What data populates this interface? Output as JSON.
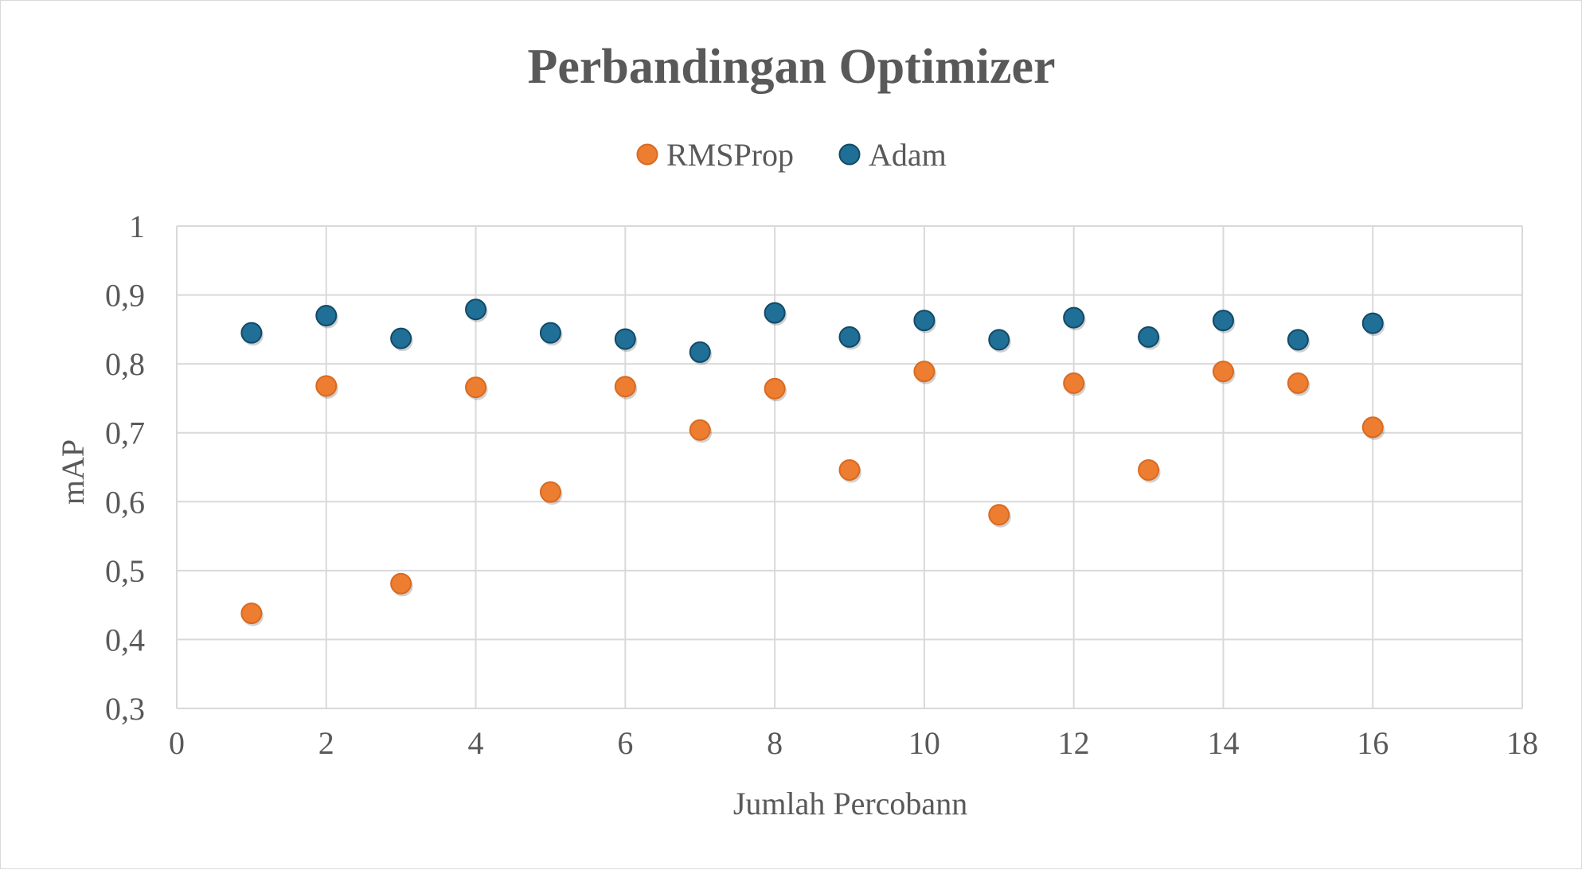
{
  "chart_data": {
    "type": "scatter",
    "title": "Perbandingan Optimizer",
    "xlabel": "Jumlah Percobann",
    "ylabel": "mAP",
    "xlim": [
      0,
      18
    ],
    "ylim": [
      0.3,
      1
    ],
    "x_ticks": [
      "0",
      "2",
      "4",
      "6",
      "8",
      "10",
      "12",
      "14",
      "16",
      "18"
    ],
    "y_ticks": [
      "0,3",
      "0,4",
      "0,5",
      "0,6",
      "0,7",
      "0,8",
      "0,9",
      "1"
    ],
    "x_tick_values": [
      0,
      2,
      4,
      6,
      8,
      10,
      12,
      14,
      16,
      18
    ],
    "y_tick_values": [
      0.3,
      0.4,
      0.5,
      0.6,
      0.7,
      0.8,
      0.9,
      1.0
    ],
    "grid": true,
    "legend_position": "top",
    "series": [
      {
        "name": "RMSProp",
        "color": "#ed7d31",
        "x": [
          1,
          2,
          3,
          4,
          5,
          6,
          7,
          8,
          9,
          10,
          11,
          12,
          13,
          14,
          15,
          16
        ],
        "y": [
          0.438,
          0.768,
          0.481,
          0.766,
          0.614,
          0.767,
          0.704,
          0.764,
          0.646,
          0.789,
          0.581,
          0.772,
          0.646,
          0.789,
          0.772,
          0.708
        ]
      },
      {
        "name": "Adam",
        "color": "#1f6f97",
        "x": [
          1,
          2,
          3,
          4,
          5,
          6,
          7,
          8,
          9,
          10,
          11,
          12,
          13,
          14,
          15,
          16
        ],
        "y": [
          0.845,
          0.87,
          0.837,
          0.879,
          0.845,
          0.836,
          0.817,
          0.874,
          0.839,
          0.863,
          0.835,
          0.867,
          0.839,
          0.863,
          0.835,
          0.859
        ]
      }
    ]
  }
}
